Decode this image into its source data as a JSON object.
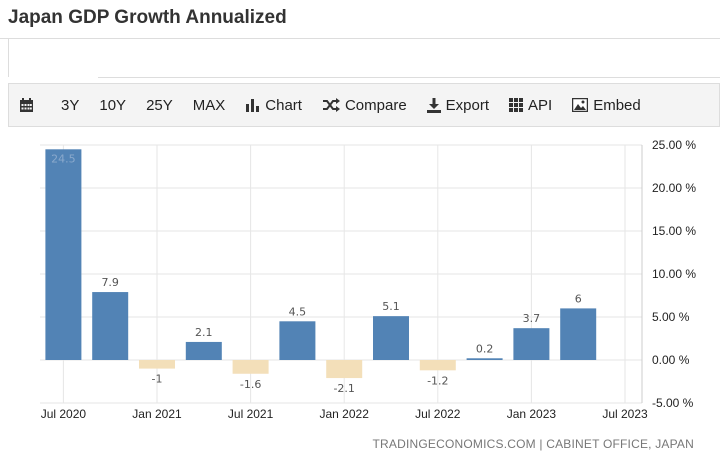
{
  "page": {
    "title": "Japan GDP Growth Annualized"
  },
  "toolbar": {
    "items": [
      {
        "label": "3Y"
      },
      {
        "label": "10Y"
      },
      {
        "label": "25Y"
      },
      {
        "label": "MAX"
      },
      {
        "label": "Chart",
        "icon": "bar-chart-icon"
      },
      {
        "label": "Compare",
        "icon": "shuffle-icon"
      },
      {
        "label": "Export",
        "icon": "download-icon"
      },
      {
        "label": "API",
        "icon": "grid-icon"
      },
      {
        "label": "Embed",
        "icon": "image-icon"
      }
    ],
    "calendar_icon": "calendar-icon"
  },
  "chart_data": {
    "type": "bar",
    "title": "",
    "xlabel": "",
    "ylabel": "",
    "categories": [
      "Q3 2020",
      "Q4 2020",
      "Q1 2021",
      "Q2 2021",
      "Q3 2021",
      "Q4 2021",
      "Q1 2022",
      "Q2 2022",
      "Q3 2022",
      "Q4 2022",
      "Q1 2023",
      "Q2 2023"
    ],
    "values": [
      24.5,
      7.9,
      -1,
      2.1,
      -1.6,
      4.5,
      -2.1,
      5.1,
      -1.2,
      0.2,
      3.7,
      6
    ],
    "value_labels": [
      "24.5",
      "7.9",
      "-1",
      "2.1",
      "-1.6",
      "4.5",
      "-2.1",
      "5.1",
      "-1.2",
      "0.2",
      "3.7",
      "6"
    ],
    "x_tick_labels": [
      "Jul 2020",
      "Jan 2021",
      "Jul 2021",
      "Jan 2022",
      "Jul 2022",
      "Jan 2023",
      "Jul 2023"
    ],
    "y_ticks": [
      25,
      20,
      15,
      10,
      5,
      0,
      -5
    ],
    "y_tick_labels": [
      "25.00 %",
      "20.00 %",
      "15.00 %",
      "10.00 %",
      "5.00 %",
      "0.00 %",
      "-5.00 %"
    ],
    "ylim": [
      -5,
      25
    ],
    "y_axis_side": "right",
    "grid": true,
    "colors": {
      "positive": "#5283b5",
      "negative": "#f3dfb9",
      "grid": "#e6e6e6"
    }
  },
  "source": {
    "text": "TRADINGECONOMICS.COM | CABINET OFFICE, JAPAN"
  }
}
